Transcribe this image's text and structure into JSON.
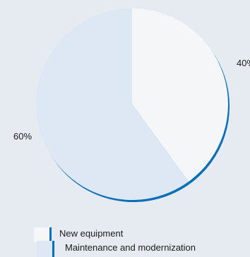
{
  "chart_data": {
    "type": "pie",
    "slices": [
      {
        "label": "New equipment",
        "value": 40,
        "display": "40%",
        "color": "#f4f6f8"
      },
      {
        "label": "Maintenance and modernization",
        "value": 60,
        "display": "60%",
        "color": "#dee7f4"
      }
    ],
    "accent_color": "#0a6fb8",
    "background_color": "#e6ebf1",
    "legend_position": "bottom-left"
  }
}
